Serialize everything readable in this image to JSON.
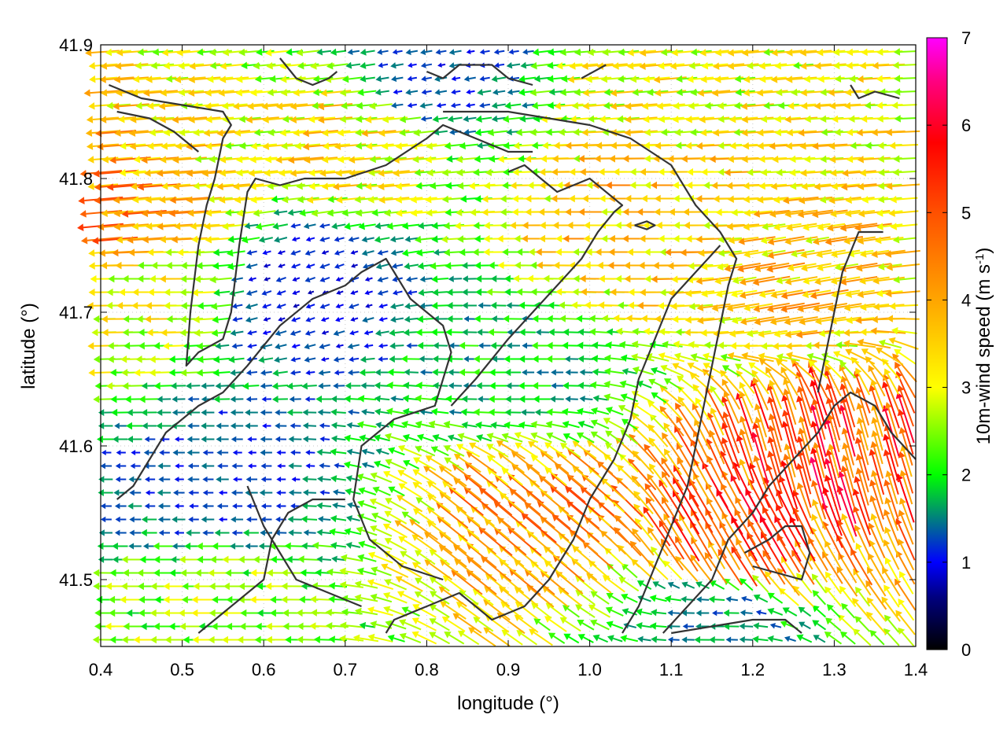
{
  "chart_data": {
    "type": "vector-field",
    "xlabel": "longitude (°)",
    "ylabel": "latitude (°)",
    "xlim": [
      0.4,
      1.4
    ],
    "ylim": [
      41.45,
      41.9
    ],
    "xticks": [
      0.4,
      0.5,
      0.6,
      0.7,
      0.8,
      0.9,
      1.0,
      1.1,
      1.2,
      1.3,
      1.4
    ],
    "xtick_labels": [
      "0.4",
      "0.5",
      "0.6",
      "0.7",
      "0.8",
      "0.9",
      "1.0",
      "1.1",
      "1.2",
      "1.3",
      "1.4"
    ],
    "yticks": [
      41.5,
      41.6,
      41.7,
      41.8,
      41.9
    ],
    "ytick_labels": [
      "41.5",
      "41.6",
      "41.7",
      "41.8",
      "41.9"
    ],
    "colorbar": {
      "label_main": "10m-wind speed (m s",
      "label_sup": "-1",
      "label_end": ")",
      "range": [
        0,
        7
      ],
      "ticks": [
        0,
        1,
        2,
        3,
        4,
        5,
        6,
        7
      ],
      "tick_labels": [
        "0",
        "1",
        "2",
        "3",
        "4",
        "5",
        "6",
        "7"
      ],
      "palette": [
        {
          "v": 0.0,
          "color": "#000000"
        },
        {
          "v": 0.6,
          "color": "#00007f"
        },
        {
          "v": 1.0,
          "color": "#0000ff"
        },
        {
          "v": 1.5,
          "color": "#007f7f"
        },
        {
          "v": 2.0,
          "color": "#00ff00"
        },
        {
          "v": 3.0,
          "color": "#ffff00"
        },
        {
          "v": 4.0,
          "color": "#ffa500"
        },
        {
          "v": 5.0,
          "color": "#ff5000"
        },
        {
          "v": 5.8,
          "color": "#ff0000"
        },
        {
          "v": 6.5,
          "color": "#ff0080"
        },
        {
          "v": 7.0,
          "color": "#ff00ff"
        }
      ]
    },
    "grid": true,
    "field": {
      "nx": 56,
      "ny": 45,
      "description_units": "u,v in m/s",
      "regions": [
        {
          "lon": 0.92,
          "lat": 41.65,
          "speed": 1.8,
          "dir_deg": 180
        },
        {
          "lon": 0.65,
          "lat": 41.72,
          "speed": 1.0,
          "dir_deg": 200
        },
        {
          "lon": 0.55,
          "lat": 41.57,
          "speed": 1.2,
          "dir_deg": 180
        },
        {
          "lon": 0.45,
          "lat": 41.73,
          "speed": 3.0,
          "dir_deg": 180
        },
        {
          "lon": 0.42,
          "lat": 41.76,
          "speed": 4.3,
          "dir_deg": 185
        },
        {
          "lon": 0.7,
          "lat": 41.83,
          "speed": 3.3,
          "dir_deg": 185
        },
        {
          "lon": 1.08,
          "lat": 41.77,
          "speed": 3.6,
          "dir_deg": 180
        },
        {
          "lon": 1.25,
          "lat": 41.72,
          "speed": 3.6,
          "dir_deg": 190
        },
        {
          "lon": 0.95,
          "lat": 41.55,
          "speed": 4.2,
          "dir_deg": 140
        },
        {
          "lon": 1.18,
          "lat": 41.53,
          "speed": 5.0,
          "dir_deg": 120
        },
        {
          "lon": 1.28,
          "lat": 41.59,
          "speed": 5.2,
          "dir_deg": 105
        },
        {
          "lon": 1.12,
          "lat": 41.88,
          "speed": 3.0,
          "dir_deg": 185
        },
        {
          "lon": 0.55,
          "lat": 41.48,
          "speed": 2.5,
          "dir_deg": 180
        },
        {
          "lon": 1.15,
          "lat": 41.47,
          "speed": 1.5,
          "dir_deg": 180
        },
        {
          "lon": 0.8,
          "lat": 41.88,
          "speed": 1.2,
          "dir_deg": 190
        }
      ]
    },
    "contours": [
      [
        [
          0.41,
          41.87
        ],
        [
          0.45,
          41.86
        ],
        [
          0.5,
          41.855
        ],
        [
          0.55,
          41.85
        ],
        [
          0.56,
          41.84
        ],
        [
          0.55,
          41.83
        ],
        [
          0.54,
          41.8
        ],
        [
          0.53,
          41.78
        ],
        [
          0.52,
          41.75
        ],
        [
          0.51,
          41.7
        ],
        [
          0.505,
          41.66
        ],
        [
          0.52,
          41.67
        ],
        [
          0.55,
          41.68
        ],
        [
          0.56,
          41.7
        ],
        [
          0.57,
          41.75
        ],
        [
          0.58,
          41.79
        ],
        [
          0.59,
          41.8
        ],
        [
          0.62,
          41.795
        ],
        [
          0.65,
          41.8
        ],
        [
          0.7,
          41.8
        ],
        [
          0.75,
          41.81
        ],
        [
          0.8,
          41.83
        ],
        [
          0.82,
          41.84
        ],
        [
          0.86,
          41.83
        ],
        [
          0.9,
          41.82
        ],
        [
          0.93,
          41.82
        ]
      ],
      [
        [
          0.42,
          41.85
        ],
        [
          0.46,
          41.845
        ],
        [
          0.49,
          41.835
        ],
        [
          0.52,
          41.82
        ]
      ],
      [
        [
          0.62,
          41.89
        ],
        [
          0.64,
          41.875
        ],
        [
          0.66,
          41.87
        ],
        [
          0.68,
          41.875
        ],
        [
          0.69,
          41.88
        ]
      ],
      [
        [
          0.8,
          41.88
        ],
        [
          0.82,
          41.875
        ],
        [
          0.84,
          41.885
        ],
        [
          0.86,
          41.885
        ],
        [
          0.88,
          41.885
        ],
        [
          0.9,
          41.875
        ],
        [
          0.93,
          41.87
        ]
      ],
      [
        [
          0.99,
          41.875
        ],
        [
          1.02,
          41.885
        ]
      ],
      [
        [
          0.82,
          41.85
        ],
        [
          0.86,
          41.85
        ],
        [
          0.9,
          41.85
        ],
        [
          0.95,
          41.845
        ],
        [
          1.0,
          41.84
        ],
        [
          1.05,
          41.83
        ],
        [
          1.1,
          41.81
        ],
        [
          1.13,
          41.78
        ],
        [
          1.16,
          41.76
        ],
        [
          1.18,
          41.74
        ],
        [
          1.17,
          41.72
        ],
        [
          1.16,
          41.69
        ],
        [
          1.15,
          41.66
        ],
        [
          1.14,
          41.63
        ],
        [
          1.13,
          41.6
        ],
        [
          1.12,
          41.57
        ],
        [
          1.1,
          41.54
        ],
        [
          1.08,
          41.51
        ],
        [
          1.06,
          41.48
        ],
        [
          1.04,
          41.46
        ]
      ],
      [
        [
          0.5,
          41.62
        ],
        [
          0.52,
          41.63
        ],
        [
          0.55,
          41.64
        ],
        [
          0.58,
          41.66
        ],
        [
          0.62,
          41.69
        ],
        [
          0.66,
          41.71
        ],
        [
          0.7,
          41.72
        ],
        [
          0.72,
          41.73
        ],
        [
          0.75,
          41.74
        ],
        [
          0.76,
          41.73
        ],
        [
          0.78,
          41.71
        ],
        [
          0.8,
          41.7
        ],
        [
          0.82,
          41.69
        ],
        [
          0.83,
          41.67
        ],
        [
          0.81,
          41.63
        ],
        [
          0.76,
          41.62
        ],
        [
          0.72,
          41.6
        ],
        [
          0.71,
          41.56
        ],
        [
          0.73,
          41.53
        ],
        [
          0.77,
          41.51
        ],
        [
          0.82,
          41.5
        ]
      ],
      [
        [
          0.42,
          41.56
        ],
        [
          0.44,
          41.57
        ],
        [
          0.46,
          41.59
        ],
        [
          0.48,
          41.61
        ],
        [
          0.5,
          41.62
        ]
      ],
      [
        [
          0.58,
          41.57
        ],
        [
          0.6,
          41.54
        ],
        [
          0.62,
          41.52
        ],
        [
          0.64,
          41.5
        ],
        [
          0.68,
          41.49
        ],
        [
          0.72,
          41.48
        ]
      ],
      [
        [
          0.52,
          41.46
        ],
        [
          0.55,
          41.475
        ],
        [
          0.58,
          41.49
        ],
        [
          0.6,
          41.5
        ],
        [
          0.61,
          41.53
        ],
        [
          0.63,
          41.55
        ],
        [
          0.66,
          41.56
        ],
        [
          0.7,
          41.56
        ]
      ],
      [
        [
          0.75,
          41.46
        ],
        [
          0.76,
          41.47
        ],
        [
          0.8,
          41.48
        ],
        [
          0.84,
          41.49
        ],
        [
          0.86,
          41.48
        ],
        [
          0.88,
          41.47
        ],
        [
          0.92,
          41.48
        ],
        [
          0.95,
          41.5
        ],
        [
          0.98,
          41.53
        ],
        [
          1.0,
          41.56
        ],
        [
          1.03,
          41.59
        ],
        [
          1.05,
          41.62
        ],
        [
          1.06,
          41.65
        ],
        [
          1.08,
          41.68
        ],
        [
          1.1,
          41.71
        ],
        [
          1.13,
          41.73
        ],
        [
          1.16,
          41.75
        ]
      ],
      [
        [
          0.83,
          41.63
        ],
        [
          0.86,
          41.65
        ],
        [
          0.9,
          41.68
        ],
        [
          0.93,
          41.7
        ],
        [
          0.96,
          41.72
        ],
        [
          0.99,
          41.74
        ],
        [
          1.01,
          41.76
        ],
        [
          1.03,
          41.775
        ],
        [
          1.04,
          41.78
        ],
        [
          1.0,
          41.8
        ],
        [
          0.96,
          41.79
        ],
        [
          0.94,
          41.8
        ],
        [
          0.92,
          41.81
        ],
        [
          0.9,
          41.805
        ]
      ],
      [
        [
          1.055,
          41.765
        ],
        [
          1.07,
          41.768
        ],
        [
          1.08,
          41.765
        ],
        [
          1.07,
          41.762
        ],
        [
          1.055,
          41.765
        ]
      ],
      [
        [
          1.4,
          41.59
        ],
        [
          1.37,
          41.61
        ],
        [
          1.35,
          41.63
        ],
        [
          1.32,
          41.64
        ],
        [
          1.3,
          41.63
        ],
        [
          1.28,
          41.61
        ],
        [
          1.25,
          41.59
        ],
        [
          1.22,
          41.57
        ],
        [
          1.2,
          41.55
        ],
        [
          1.17,
          41.53
        ],
        [
          1.15,
          41.5
        ],
        [
          1.12,
          41.48
        ],
        [
          1.09,
          41.46
        ]
      ],
      [
        [
          1.19,
          41.52
        ],
        [
          1.22,
          41.53
        ],
        [
          1.24,
          41.54
        ],
        [
          1.26,
          41.54
        ],
        [
          1.27,
          41.52
        ],
        [
          1.26,
          41.5
        ],
        [
          1.23,
          41.505
        ],
        [
          1.2,
          41.51
        ]
      ],
      [
        [
          1.1,
          41.46
        ],
        [
          1.15,
          41.465
        ],
        [
          1.2,
          41.47
        ],
        [
          1.24,
          41.47
        ],
        [
          1.26,
          41.46
        ]
      ],
      [
        [
          1.38,
          41.86
        ],
        [
          1.35,
          41.865
        ],
        [
          1.33,
          41.86
        ],
        [
          1.32,
          41.87
        ]
      ],
      [
        [
          1.36,
          41.76
        ],
        [
          1.33,
          41.76
        ],
        [
          1.31,
          41.73
        ],
        [
          1.3,
          41.7
        ],
        [
          1.29,
          41.67
        ],
        [
          1.28,
          41.64
        ]
      ]
    ]
  }
}
